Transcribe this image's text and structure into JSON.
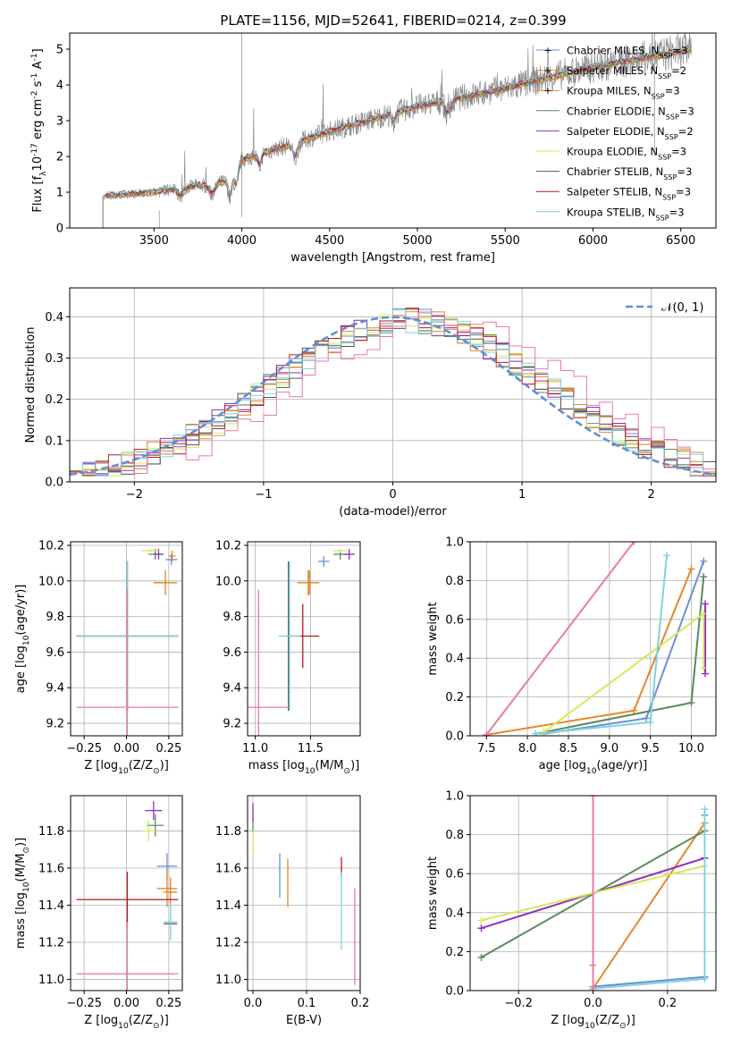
{
  "figure": {
    "title": "PLATE=1156, MJD=52641, FIBERID=0214, z=0.399"
  },
  "models": [
    {
      "name": "Chabrier MILES, N$_{SSP}$=3",
      "base": "Chabrier MILES, N",
      "sub": "SSP",
      "tail": "=3",
      "color": "#6b8fd6"
    },
    {
      "name": "Salpeter MILES, N$_{SSP}$=2",
      "base": "Salpeter MILES, N",
      "sub": "SSP",
      "tail": "=2",
      "color": "#e8862a"
    },
    {
      "name": "Kroupa MILES, N$_{SSP}$=3",
      "base": "Kroupa MILES, N",
      "sub": "SSP",
      "tail": "=3",
      "color": "#e0851e"
    },
    {
      "name": "Chabrier ELODIE, N$_{SSP}$=3",
      "base": "Chabrier ELODIE, N",
      "sub": "SSP",
      "tail": "=3",
      "color": "#5b8a5b"
    },
    {
      "name": "Salpeter ELODIE, N$_{SSP}$=2",
      "base": "Salpeter ELODIE, N",
      "sub": "SSP",
      "tail": "=2",
      "color": "#8e2fb8"
    },
    {
      "name": "Kroupa ELODIE, N$_{SSP}$=3",
      "base": "Kroupa ELODIE, N",
      "sub": "SSP",
      "tail": "=3",
      "color": "#d4ea5a"
    },
    {
      "name": "Chabrier STELIB, N$_{SSP}$=3",
      "base": "Chabrier STELIB, N",
      "sub": "SSP",
      "tail": "=3",
      "color": "#555555"
    },
    {
      "name": "Salpeter STELIB, N$_{SSP}$=3",
      "base": "Salpeter STELIB, N",
      "sub": "SSP",
      "tail": "=3",
      "color": "#c0141e"
    },
    {
      "name": "Kroupa STELIB, N$_{SSP}$=3",
      "base": "Kroupa STELIB, N",
      "sub": "SSP",
      "tail": "=3",
      "color": "#7fd3de"
    }
  ],
  "extra_colors": {
    "data": "#808080",
    "pink": "#e87aa9",
    "normal": "#5f8ed6"
  },
  "chart_data": [
    {
      "id": "spectrum",
      "type": "line",
      "title": "PLATE=1156, MJD=52641, FIBERID=0214, z=0.399",
      "xlabel": "wavelength [Angstrom, rest frame]",
      "ylabel": "Flux [f$_\\lambda$10$^{-17}$ erg cm$^{-2}$ s$^{-1}$ A$^{-1}$]",
      "xlim": [
        3020,
        6700
      ],
      "ylim": [
        0,
        5.45
      ],
      "xticks": [
        3500,
        4000,
        4500,
        5000,
        5500,
        6000,
        6500
      ],
      "yticks": [
        0,
        1,
        2,
        3,
        4,
        5
      ],
      "legend": "upper-right",
      "start": 3210,
      "end": 6560,
      "data_start": 3530,
      "continuum": [
        [
          3210,
          0.9
        ],
        [
          3500,
          1.0
        ],
        [
          3900,
          1.3
        ],
        [
          4000,
          1.9
        ],
        [
          4500,
          2.7
        ],
        [
          5000,
          3.4
        ],
        [
          5500,
          3.9
        ],
        [
          6000,
          4.5
        ],
        [
          6560,
          5.0
        ]
      ]
    },
    {
      "id": "residuals",
      "type": "line",
      "xlabel": "(data-model)/error",
      "ylabel": "Normed distribution",
      "xlim": [
        -2.5,
        2.5
      ],
      "ylim": [
        0,
        0.47
      ],
      "xticks": [
        -2,
        -1,
        0,
        1,
        2
      ],
      "yticks": [
        0.0,
        0.1,
        0.2,
        0.3,
        0.4
      ],
      "legend": "upper-right",
      "series": [
        {
          "name": "$\\mathcal{N}(0,1)$",
          "label": "𝒩(0, 1)",
          "style": "dashed"
        }
      ]
    },
    {
      "id": "age-vs-Z",
      "type": "scatter",
      "xlabel": "Z [log$_{10}$(Z/Z$_\\odot$)]",
      "ylabel": "age  [log$_{10}$(age/yr)]",
      "xlim": [
        -0.33,
        0.33
      ],
      "ylim": [
        9.13,
        10.22
      ],
      "xticks": [
        -0.25,
        0.0,
        0.25
      ],
      "yticks": [
        9.2,
        9.4,
        9.6,
        9.8,
        10.0,
        10.2
      ],
      "points": [
        {
          "model": 0,
          "x": 0.265,
          "y": 10.12,
          "xerr": 0.035,
          "yerr": 0.03
        },
        {
          "model": 1,
          "x": 0.27,
          "y": 10.14,
          "xerr": 0.02,
          "yerr": 0.03
        },
        {
          "model": 2,
          "x": 0.23,
          "y": 9.99,
          "xerr": 0.07,
          "yerr": 0.07
        },
        {
          "model": 3,
          "x": 0.17,
          "y": 10.15,
          "xerr": 0.04,
          "yerr": 0.03
        },
        {
          "model": 4,
          "x": 0.19,
          "y": 10.15,
          "xerr": 0.03,
          "yerr": 0.03
        },
        {
          "model": 5,
          "x": 0.14,
          "y": 10.17,
          "xerr": 0.05,
          "yerr": 0.01
        },
        {
          "model": 6,
          "x": 0.005,
          "y": 9.69,
          "xerr": 0.3,
          "yerr": 0.42
        },
        {
          "model": 7,
          "x": 0.005,
          "y": 9.69,
          "xerr": 0.3,
          "yerr": 0.42
        },
        {
          "model": 8,
          "x": 0.005,
          "y": 9.69,
          "xerr": 0.3,
          "yerr": 0.42
        },
        {
          "model": -1,
          "x": 0.005,
          "y": 9.29,
          "xerr": 0.3,
          "yerr": 0.66
        }
      ]
    },
    {
      "id": "age-vs-mass",
      "type": "scatter",
      "xlabel": "mass [log$_{10}$(M/M$_\\odot$)]",
      "ylabel": "",
      "xlim": [
        10.93,
        11.95
      ],
      "ylim": [
        9.13,
        10.22
      ],
      "xticks": [
        11.0,
        11.5
      ],
      "yticks": [
        9.2,
        9.4,
        9.6,
        9.8,
        10.0,
        10.2
      ],
      "points": [
        {
          "model": 0,
          "x": 11.62,
          "y": 10.11,
          "xerr": 0.05,
          "yerr": 0.03
        },
        {
          "model": 1,
          "x": 11.49,
          "y": 9.99,
          "xerr": 0.02,
          "yerr": 0.07
        },
        {
          "model": 2,
          "x": 11.48,
          "y": 9.99,
          "xerr": 0.1,
          "yerr": 0.07
        },
        {
          "model": 3,
          "x": 11.77,
          "y": 10.15,
          "xerr": 0.06,
          "yerr": 0.03
        },
        {
          "model": 4,
          "x": 11.85,
          "y": 10.15,
          "xerr": 0.05,
          "yerr": 0.03
        },
        {
          "model": 5,
          "x": 11.77,
          "y": 10.17,
          "xerr": 0.06,
          "yerr": 0.01
        },
        {
          "model": 6,
          "x": 11.3,
          "y": 9.69,
          "xerr": 0.0,
          "yerr": 0.42
        },
        {
          "model": 7,
          "x": 11.43,
          "y": 9.69,
          "xerr": 0.15,
          "yerr": 0.18
        },
        {
          "model": 8,
          "x": 11.31,
          "y": 9.69,
          "xerr": 0.1,
          "yerr": 0.42
        },
        {
          "model": -1,
          "x": 11.03,
          "y": 9.29,
          "xerr": 0.27,
          "yerr": 0.66
        }
      ]
    },
    {
      "id": "weight-vs-age",
      "type": "line",
      "xlabel": "age  [log$_{10}$(age/yr)]",
      "ylabel": "mass weight",
      "xlim": [
        7.3,
        10.3
      ],
      "ylim": [
        0,
        1.0
      ],
      "xticks": [
        7.5,
        8.0,
        8.5,
        9.0,
        9.5,
        10.0
      ],
      "yticks": [
        0.0,
        0.2,
        0.4,
        0.6,
        0.8,
        1.0
      ],
      "series": [
        {
          "model": 0,
          "x": [
            8.2,
            9.45,
            10.15
          ],
          "y": [
            0.01,
            0.09,
            0.9
          ]
        },
        {
          "model": 1,
          "x": [
            7.5,
            9.3,
            10.0
          ],
          "y": [
            0.005,
            0.13,
            0.86
          ]
        },
        {
          "model": 3,
          "x": [
            8.1,
            10.0,
            10.15
          ],
          "y": [
            0.01,
            0.17,
            0.82
          ]
        },
        {
          "model": 4,
          "x": [
            10.17,
            10.17
          ],
          "y": [
            0.32,
            0.68
          ]
        },
        {
          "model": 5,
          "x": [
            8.2,
            10.15,
            10.15
          ],
          "y": [
            0.02,
            0.63,
            0.35
          ]
        },
        {
          "model": 8,
          "x": [
            8.1,
            9.5,
            9.7
          ],
          "y": [
            0.01,
            0.07,
            0.93
          ]
        },
        {
          "model": -1,
          "x": [
            7.5,
            9.3
          ],
          "y": [
            0.005,
            1.0
          ]
        }
      ]
    },
    {
      "id": "mass-vs-Z",
      "type": "scatter",
      "xlabel": "Z [log$_{10}$(Z/Z$_\\odot$)]",
      "ylabel": "mass [log$_{10}$(M/M$_\\odot$)]",
      "xlim": [
        -0.33,
        0.33
      ],
      "ylim": [
        10.94,
        11.99
      ],
      "xticks": [
        -0.25,
        0.0,
        0.25
      ],
      "yticks": [
        11.0,
        11.2,
        11.4,
        11.6,
        11.8
      ],
      "points": [
        {
          "model": 0,
          "x": 0.24,
          "y": 11.61,
          "xerr": 0.06,
          "yerr": 0.07
        },
        {
          "model": 1,
          "x": 0.24,
          "y": 11.49,
          "xerr": 0.06,
          "yerr": 0.1
        },
        {
          "model": 2,
          "x": 0.26,
          "y": 11.47,
          "xerr": 0.04,
          "yerr": 0.08
        },
        {
          "model": 3,
          "x": 0.17,
          "y": 11.83,
          "xerr": 0.05,
          "yerr": 0.06
        },
        {
          "model": 4,
          "x": 0.16,
          "y": 11.91,
          "xerr": 0.05,
          "yerr": 0.05
        },
        {
          "model": 5,
          "x": 0.13,
          "y": 11.8,
          "xerr": 0.04,
          "yerr": 0.06
        },
        {
          "model": 6,
          "x": 0.26,
          "y": 11.3,
          "xerr": 0.04,
          "yerr": 0.01
        },
        {
          "model": 7,
          "x": 0.005,
          "y": 11.43,
          "xerr": 0.3,
          "yerr": 0.15
        },
        {
          "model": 8,
          "x": 0.26,
          "y": 11.31,
          "xerr": 0.04,
          "yerr": 0.1
        },
        {
          "model": -1,
          "x": 0.005,
          "y": 11.03,
          "xerr": 0.3,
          "yerr": 0.28
        }
      ]
    },
    {
      "id": "mass-vs-ebv",
      "type": "scatter",
      "xlabel": "E(B-V)",
      "ylabel": "",
      "xlim": [
        -0.01,
        0.2
      ],
      "ylim": [
        10.94,
        11.99
      ],
      "xticks": [
        0.0,
        0.1,
        0.2
      ],
      "yticks": [
        11.0,
        11.2,
        11.4,
        11.6,
        11.8
      ],
      "points": [
        {
          "model": 0,
          "x": 0.05,
          "y": 11.56,
          "xerr": 0.0,
          "yerr": 0.12
        },
        {
          "model": 1,
          "x": 0.065,
          "y": 11.52,
          "xerr": 0.0,
          "yerr": 0.13
        },
        {
          "model": 3,
          "x": 0.0,
          "y": 11.83,
          "xerr": 0.0,
          "yerr": 0.04
        },
        {
          "model": 4,
          "x": 0.0,
          "y": 11.9,
          "xerr": 0.0,
          "yerr": 0.05
        },
        {
          "model": 5,
          "x": 0.0,
          "y": 11.74,
          "xerr": 0.0,
          "yerr": 0.06
        },
        {
          "model": 7,
          "x": 0.165,
          "y": 11.61,
          "xerr": 0.0,
          "yerr": 0.05
        },
        {
          "model": 8,
          "x": 0.165,
          "y": 11.37,
          "xerr": 0.0,
          "yerr": 0.21
        },
        {
          "model": -1,
          "x": 0.19,
          "y": 11.23,
          "xerr": 0.0,
          "yerr": 0.26
        }
      ]
    },
    {
      "id": "weight-vs-Z",
      "type": "line",
      "xlabel": "Z [log$_{10}$(Z/Z$_\\odot$)]",
      "ylabel": "mass weight",
      "xlim": [
        -0.33,
        0.33
      ],
      "ylim": [
        0,
        1.0
      ],
      "xticks": [
        -0.2,
        0.0,
        0.2
      ],
      "yticks": [
        0.0,
        0.2,
        0.4,
        0.6,
        0.8,
        1.0
      ],
      "series": [
        {
          "model": 0,
          "x": [
            0.0,
            0.3,
            0.3
          ],
          "y": [
            0.02,
            0.07,
            0.9
          ]
        },
        {
          "model": 1,
          "x": [
            0.0,
            0.0,
            0.3
          ],
          "y": [
            0.13,
            0.01,
            0.86
          ]
        },
        {
          "model": 3,
          "x": [
            -0.3,
            0.3
          ],
          "y": [
            0.17,
            0.82
          ]
        },
        {
          "model": 4,
          "x": [
            -0.3,
            0.3
          ],
          "y": [
            0.32,
            0.68
          ]
        },
        {
          "model": 5,
          "x": [
            -0.3,
            0.3
          ],
          "y": [
            0.36,
            0.64
          ]
        },
        {
          "model": 8,
          "x": [
            0.0,
            0.3,
            0.3
          ],
          "y": [
            0.01,
            0.06,
            0.93
          ]
        },
        {
          "model": -1,
          "x": [
            0.0,
            0.0
          ],
          "y": [
            0.0,
            1.0
          ]
        }
      ]
    }
  ]
}
